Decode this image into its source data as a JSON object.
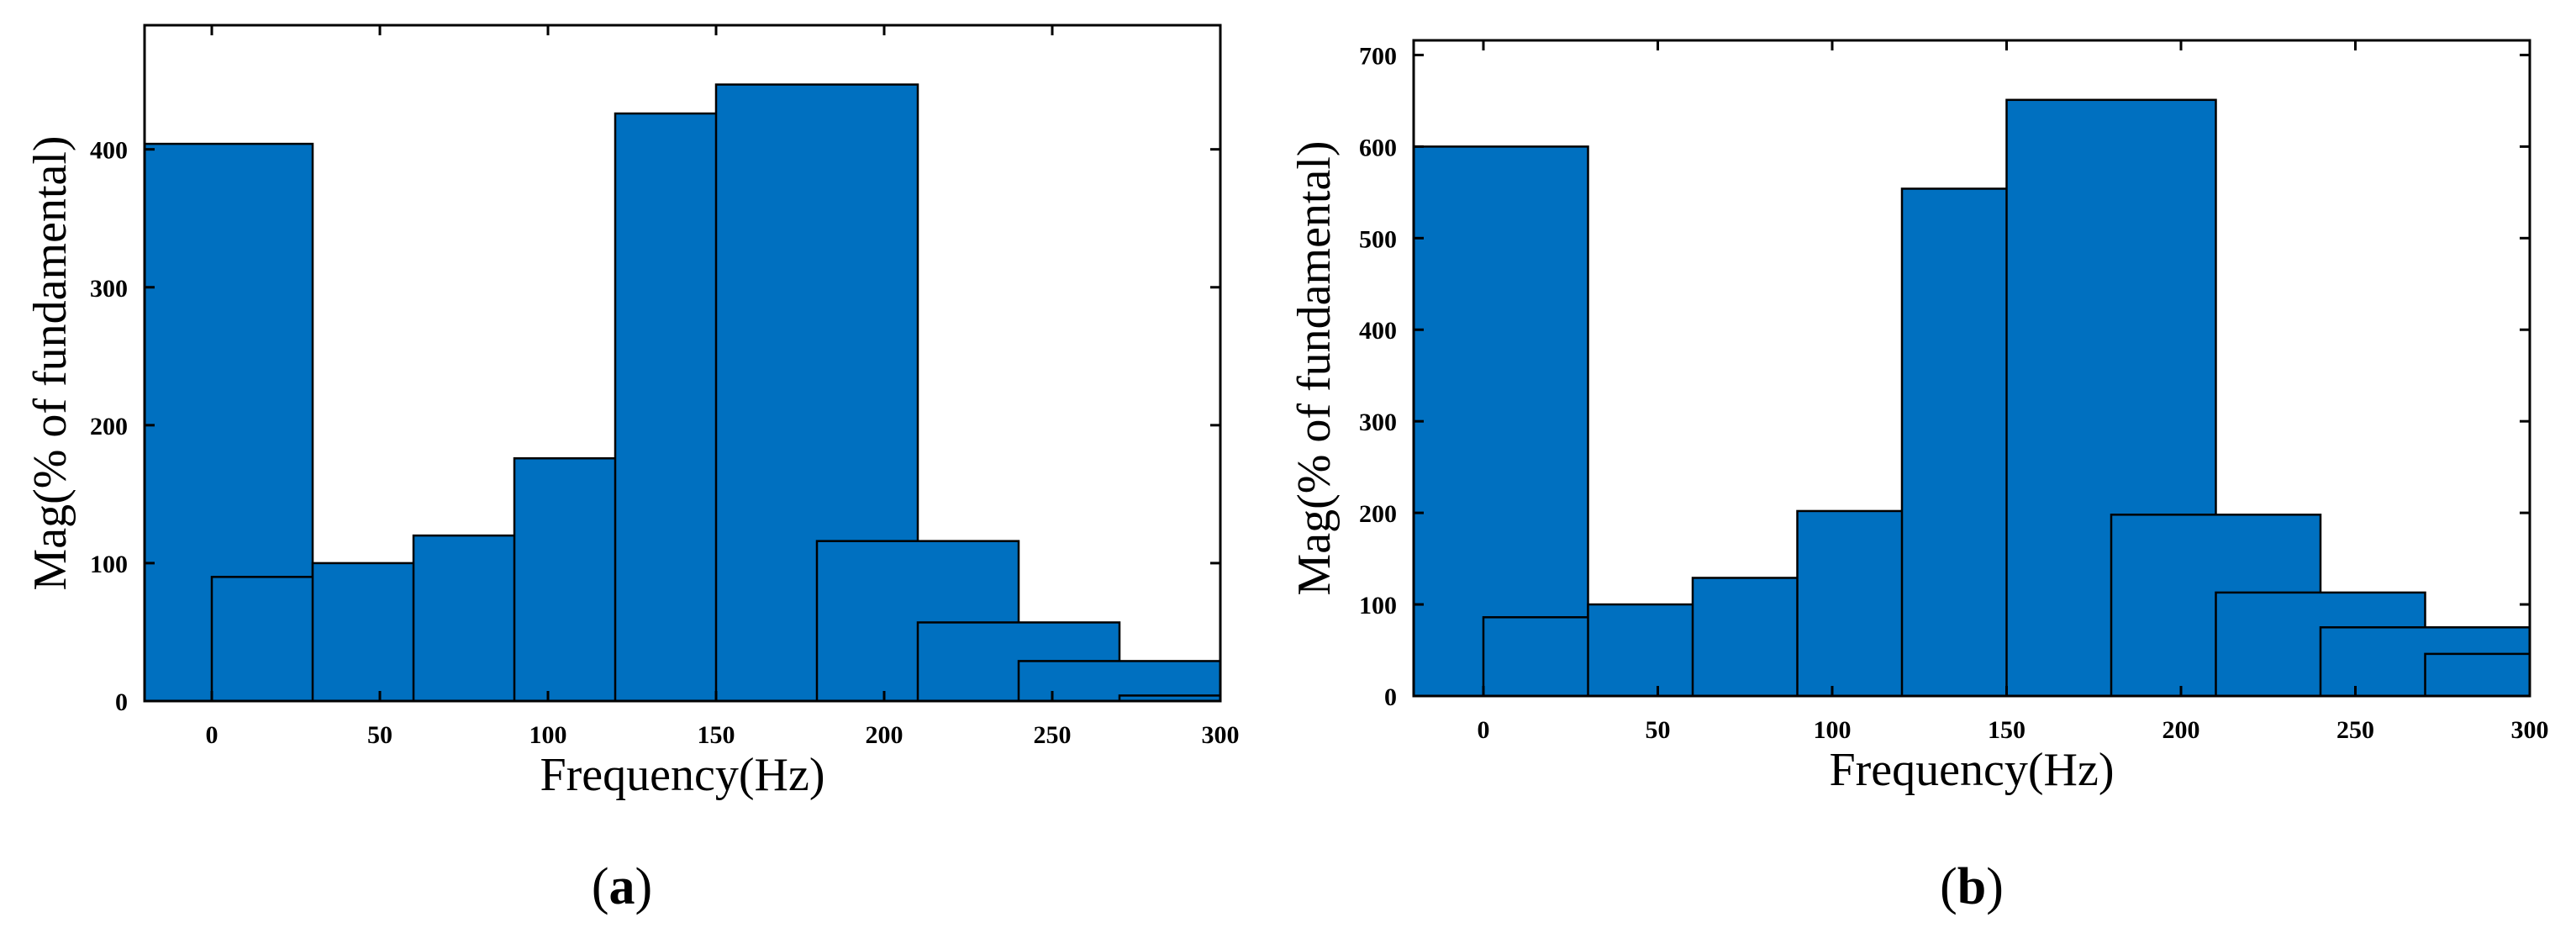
{
  "accent_color": "#0070c0",
  "chart_data": [
    {
      "type": "bar",
      "panel_label": "a",
      "xlabel": "Frequency(Hz)",
      "ylabel": "Mag(% of fundamental)",
      "x": [
        0,
        30,
        60,
        90,
        120,
        150,
        180,
        210,
        240,
        270,
        300
      ],
      "values": [
        404,
        90,
        100,
        120,
        176,
        426,
        447,
        116,
        57,
        29,
        4
      ],
      "xlim": [
        -20,
        300
      ],
      "ylim": [
        0,
        490
      ],
      "xticks": [
        0,
        50,
        100,
        150,
        200,
        250,
        300
      ],
      "yticks": [
        0,
        100,
        200,
        300,
        400
      ],
      "bar_color": "#0070c0"
    },
    {
      "type": "bar",
      "panel_label": "b",
      "xlabel": "Frequency(Hz)",
      "ylabel": "Mag(% of fundamental)",
      "x": [
        0,
        30,
        60,
        90,
        120,
        150,
        180,
        210,
        240,
        270,
        300
      ],
      "values": [
        600,
        86,
        100,
        129,
        202,
        554,
        651,
        198,
        113,
        75,
        46
      ],
      "xlim": [
        -20,
        300
      ],
      "ylim": [
        0,
        716
      ],
      "xticks": [
        0,
        50,
        100,
        150,
        200,
        250,
        300
      ],
      "yticks": [
        0,
        100,
        200,
        300,
        400,
        500,
        600,
        700
      ],
      "bar_color": "#0070c0"
    }
  ]
}
